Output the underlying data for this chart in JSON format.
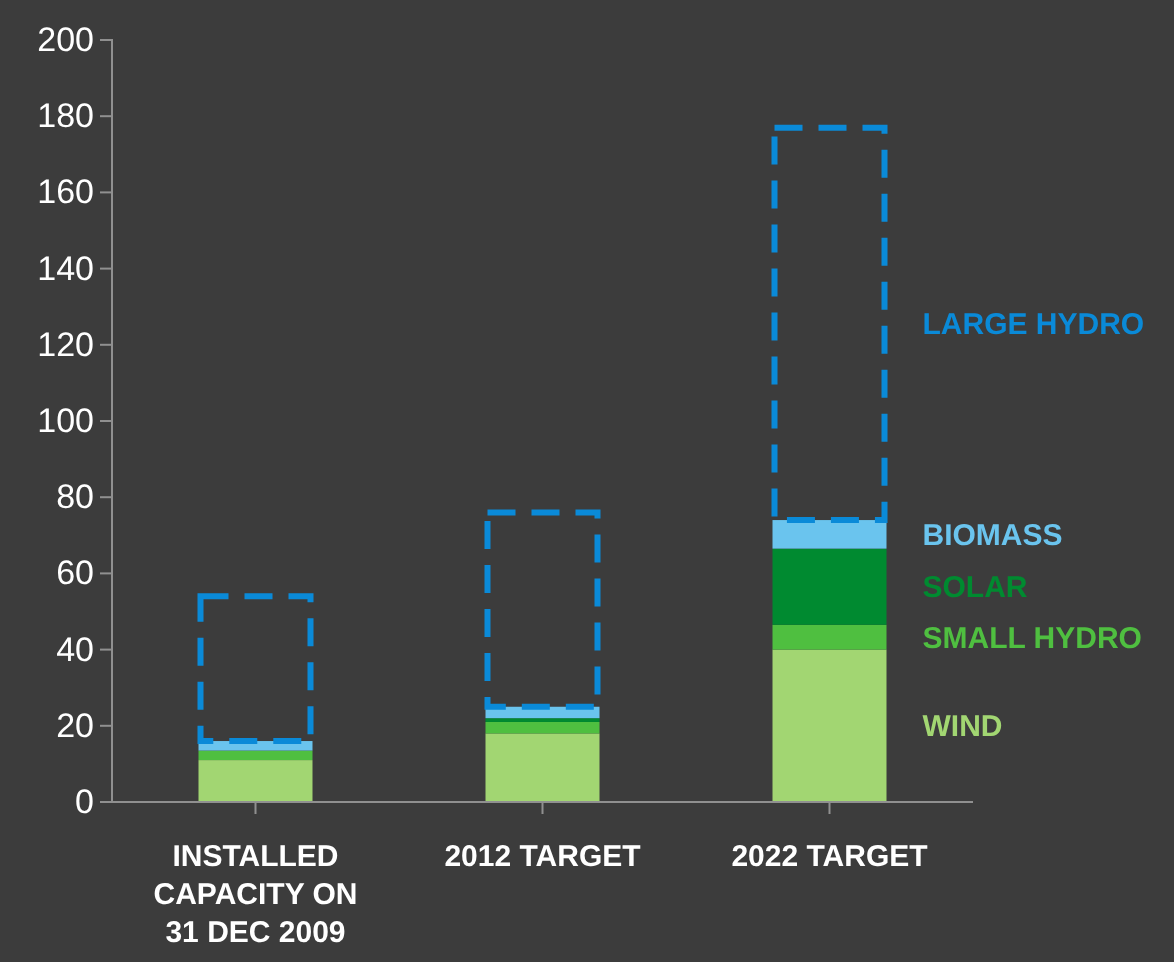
{
  "chart_data": {
    "type": "bar",
    "stacked": true,
    "categories": [
      "INSTALLED CAPACITY ON 31 DEC 2009",
      "2012 TARGET",
      "2022 TARGET"
    ],
    "series": [
      {
        "name": "WIND",
        "color": "#a2d672",
        "values": [
          11,
          18,
          40
        ]
      },
      {
        "name": "SMALL HYDRO",
        "color": "#4fbf40",
        "values": [
          2.5,
          3,
          6.5
        ]
      },
      {
        "name": "SOLAR",
        "color": "#008a30",
        "values": [
          0,
          1,
          20
        ]
      },
      {
        "name": "BIOMASS",
        "color": "#6ac4ee",
        "values": [
          2.5,
          3,
          7.5
        ]
      },
      {
        "name": "LARGE HYDRO",
        "color": "#0a8ad8",
        "line_style": "dashed",
        "values": [
          38,
          51,
          103
        ]
      }
    ],
    "ylim": [
      0,
      200
    ],
    "yticks": [
      0,
      20,
      40,
      60,
      80,
      100,
      120,
      140,
      160,
      180,
      200
    ],
    "legend": "right"
  }
}
